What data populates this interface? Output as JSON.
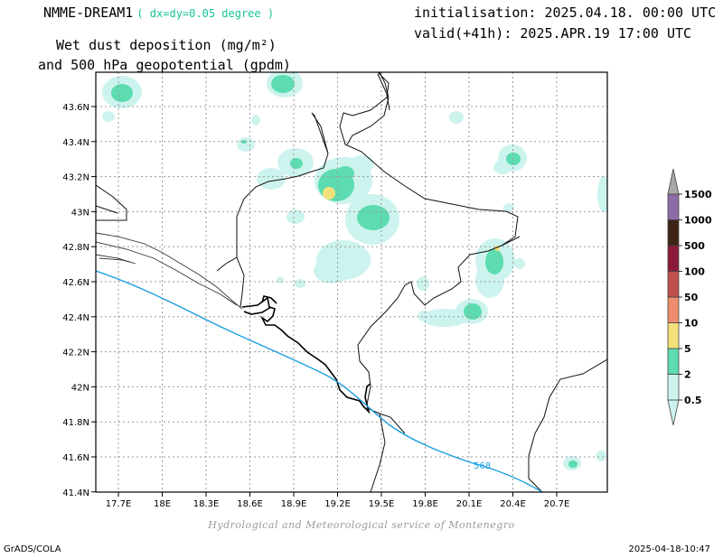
{
  "header": {
    "model": "NMME-DREAM1",
    "resolution": "( dx=dy=0.05 degree )",
    "init": "initialisation: 2025.04.18. 00:00 UTC",
    "valid": "valid(+41h): 2025.APR.19 17:00 UTC",
    "field_line1": "Wet dust deposition (mg/m²)",
    "field_line2": "and 500 hPa geopotential (gpdm)"
  },
  "map": {
    "lon_labels": [
      "17.7E",
      "18E",
      "18.3E",
      "18.6E",
      "18.9E",
      "19.2E",
      "19.5E",
      "19.8E",
      "20.1E",
      "20.4E",
      "20.7E"
    ],
    "lat_labels": [
      "43.6N",
      "43.4N",
      "43.2N",
      "43N",
      "42.8N",
      "42.6N",
      "42.4N",
      "42.2N",
      "42N",
      "41.8N",
      "41.6N",
      "41.4N"
    ],
    "contour_label": "568",
    "contour_color": "#1a9fe0",
    "grid_color": "#9a9a9a"
  },
  "colorbar": {
    "levels": [
      "0.5",
      "2",
      "5",
      "10",
      "50",
      "100",
      "500",
      "1000",
      "1500"
    ],
    "colors": [
      "#cdf3ee",
      "#5cdcb0",
      "#f4e07a",
      "#ed8d6e",
      "#c0504a",
      "#8b1a3a",
      "#3d2416",
      "#8c6ca6",
      "#a8a8a8"
    ]
  },
  "footer": {
    "credit": "Hydrological and Meteorological service of Montenegro",
    "left": "GrADS/COLA",
    "right": "2025-04-18-10:47"
  }
}
